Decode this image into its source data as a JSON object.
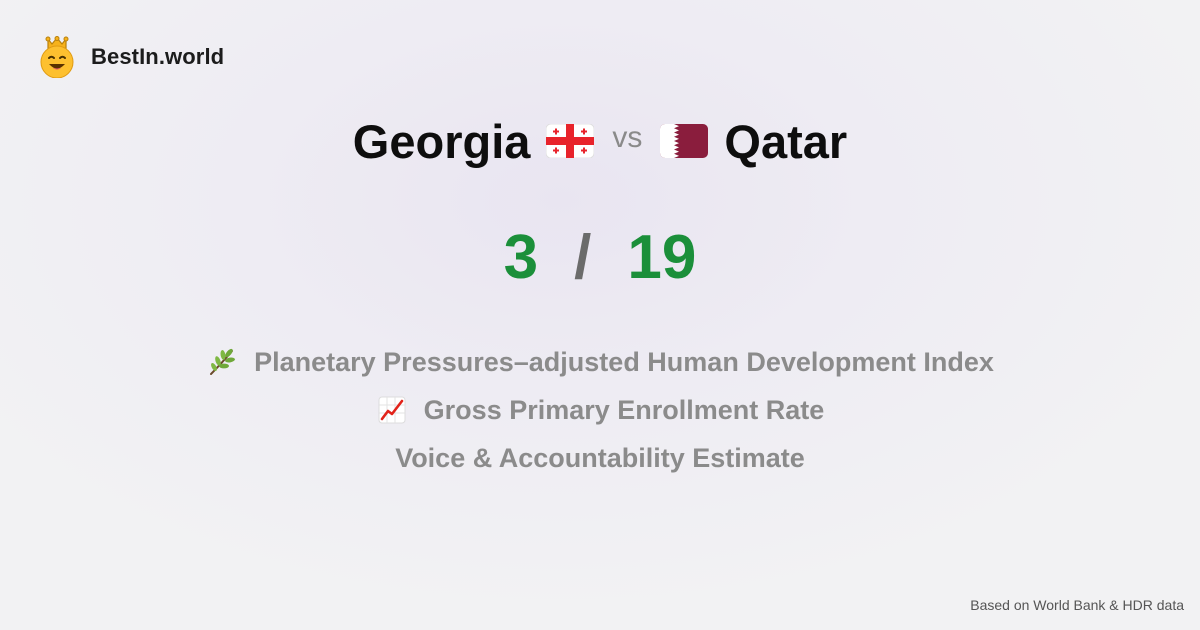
{
  "brand": {
    "name": "BestIn.world",
    "logo_icon": "crown-smiley-icon"
  },
  "comparison": {
    "left": {
      "name": "Georgia",
      "flag_icon": "georgia-flag-icon",
      "score": "3"
    },
    "separator": "vs",
    "right": {
      "name": "Qatar",
      "flag_icon": "qatar-flag-icon",
      "score": "19"
    },
    "score_separator": "/"
  },
  "metrics": [
    {
      "icon": "herb-icon",
      "label": "Planetary Pressures–adjusted Human Development Index"
    },
    {
      "icon": "chart-increasing-icon",
      "label": "Gross Primary Enrollment Rate"
    },
    {
      "icon": "",
      "label": "Voice & Accountability Estimate"
    }
  ],
  "footer": {
    "source": "Based on World Bank & HDR data"
  },
  "colors": {
    "score_green": "#1b8f3a",
    "muted_text": "#8b8b8b",
    "background": "#f2f2f3"
  }
}
